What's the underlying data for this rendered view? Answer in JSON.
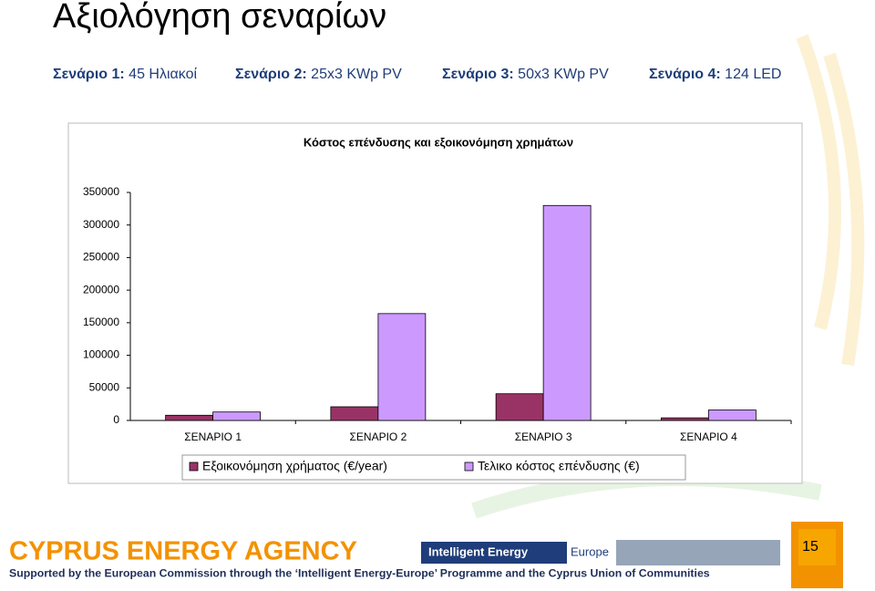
{
  "slide": {
    "title": "Αξιολόγηση σεναρίων",
    "scenarios": [
      {
        "label": "Σενάριο 1:",
        "text": "45 Ηλιακοί"
      },
      {
        "label": "Σενάριο 2:",
        "text": "25x3 KWp PV"
      },
      {
        "label": "Σενάριο 3:",
        "text": "50x3 KWp PV"
      },
      {
        "label": "Σενάριο 4:",
        "text": "124 LED"
      }
    ],
    "footer": {
      "agency": "CYPRUS ENERGY AGENCY",
      "support": "Supported by the European Commission through the ‘Intelligent Energy-Europe’ Programme and the Cyprus Union of Communities",
      "program": "Intelligent Energy",
      "program_region": "Europe",
      "page": "15"
    }
  },
  "chart_data": {
    "type": "bar",
    "title": "Κόστος επένδυσης και εξοικονόμηση χρημάτων",
    "categories": [
      "ΣΕΝΑΡΙΟ 1",
      "ΣΕΝΑΡΙΟ 2",
      "ΣΕΝΑΡΙΟ 3",
      "ΣΕΝΑΡΙΟ 4"
    ],
    "series": [
      {
        "name": "Εξοικονόμηση χρήματος (€/year)",
        "color": "#993366",
        "values": [
          8000,
          21000,
          41000,
          4000
        ]
      },
      {
        "name": "Τελικο κόστος επένδυσης (€)",
        "color": "#cc99ff",
        "values": [
          13000,
          164000,
          330000,
          16000
        ]
      }
    ],
    "ylim": [
      0,
      350000
    ],
    "yticks": [
      0,
      50000,
      100000,
      150000,
      200000,
      250000,
      300000,
      350000
    ],
    "grid": false,
    "legend": "bottom"
  }
}
